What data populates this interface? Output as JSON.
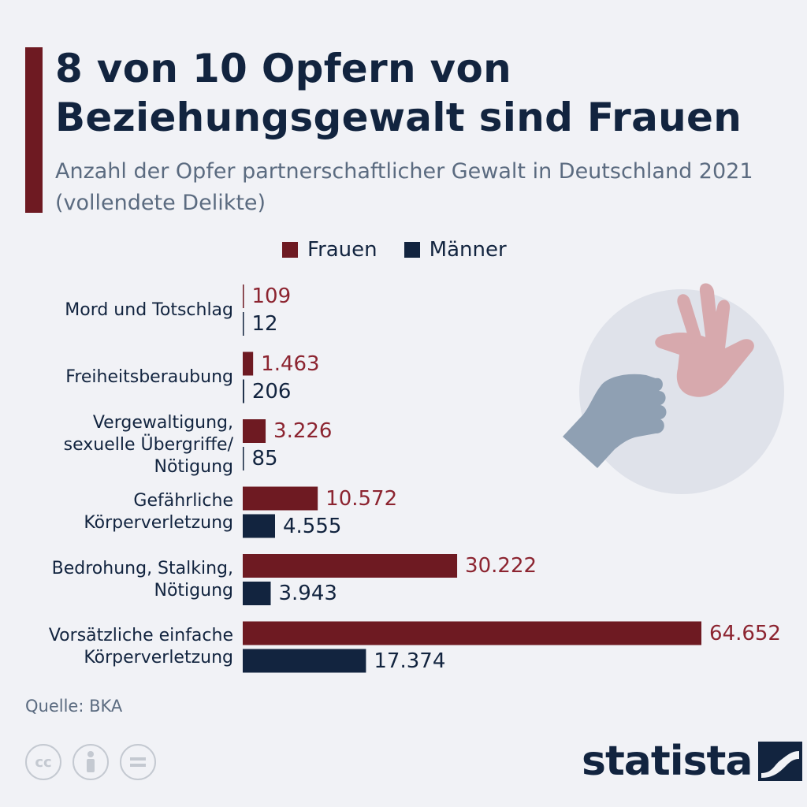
{
  "title": "8 von 10 Opfern von Beziehungsgewalt sind Frauen",
  "subtitle": "Anzahl der Opfer partnerschaftlicher Gewalt in Deutschland 2021 (vollendete Delikte)",
  "source": "Quelle: BKA",
  "brand": "statista",
  "colors": {
    "frauen": "#6e1a22",
    "maenner": "#12243f",
    "frauen_text": "#8c2430"
  },
  "chart_data": {
    "type": "bar",
    "orientation": "horizontal",
    "categories": [
      [
        "Mord und Totschlag"
      ],
      [
        "Freiheitsberaubung"
      ],
      [
        "Vergewaltigung,",
        "sexuelle Übergriffe/",
        "Nötigung"
      ],
      [
        "Gefährliche",
        "Körperverletzung"
      ],
      [
        "Bedrohung, Stalking,",
        "Nötigung"
      ],
      [
        "Vorsätzliche einfache",
        "Körperverletzung"
      ]
    ],
    "series": [
      {
        "name": "Frauen",
        "values": [
          109,
          1463,
          3226,
          10572,
          30222,
          64652
        ],
        "labels": [
          "109",
          "1.463",
          "3.226",
          "10.572",
          "30.222",
          "64.652"
        ]
      },
      {
        "name": "Männer",
        "values": [
          12,
          206,
          85,
          4555,
          3943,
          17374
        ],
        "labels": [
          "12",
          "206",
          "85",
          "4.555",
          "3.943",
          "17.374"
        ]
      }
    ],
    "xlim": [
      0,
      64652
    ],
    "grid": false,
    "legend": "top"
  }
}
